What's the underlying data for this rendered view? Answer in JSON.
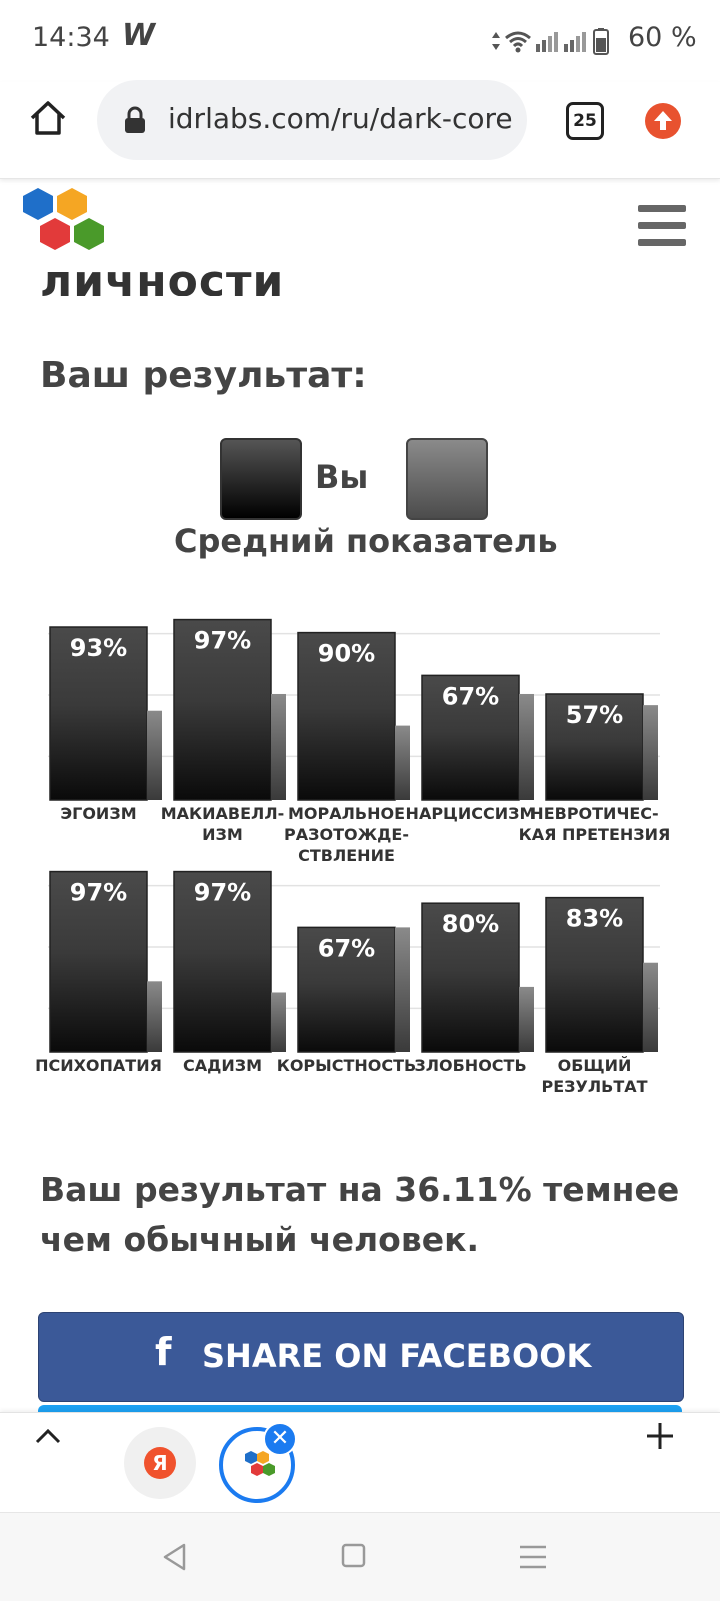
{
  "status_bar": {
    "time": "14:34",
    "app_icon": "W",
    "battery": "60 %"
  },
  "browser": {
    "url": "idrlabs.com/ru/dark-core",
    "tab_count": "25"
  },
  "page": {
    "heading_partial": "личности",
    "result_title": "Ваш результат:",
    "legend": {
      "you": "Вы",
      "average": "Средний показатель"
    },
    "summary": "Ваш результат на 36.11% темнее чем обычный человек.",
    "share_facebook": "SHARE ON FACEBOOK"
  },
  "bottom_bar": {
    "yandex_label": "Я"
  },
  "colors": {
    "facebook": "#3b5998",
    "twitter": "#1da1f2",
    "upload_accent": "#e8522f",
    "active_tab": "#1b7bf0"
  },
  "chart_data": [
    {
      "type": "bar",
      "categories": [
        [
          "ЭГОИЗМ"
        ],
        [
          "МАКИАВЕЛЛ-",
          "ИЗМ"
        ],
        [
          "МОРАЛЬНОЕ",
          "РАЗОТОЖДЕ-",
          "СТВЛЕНИЕ"
        ],
        [
          "НАРЦИССИЗМ"
        ],
        [
          "НЕВРОТИЧЕС-",
          "КАЯ ПРЕТЕНЗИЯ"
        ]
      ],
      "series": [
        {
          "name": "Вы",
          "values": [
            93,
            97,
            90,
            67,
            57
          ],
          "labels": [
            "93%",
            "97%",
            "90%",
            "67%",
            "57%"
          ]
        },
        {
          "name": "Средний показатель",
          "values": [
            48,
            57,
            40,
            57,
            51
          ]
        }
      ],
      "ylim": [
        0,
        100
      ],
      "grid": true
    },
    {
      "type": "bar",
      "categories": [
        [
          "ПСИХОПАТИЯ"
        ],
        [
          "САДИЗМ"
        ],
        [
          "КОРЫСТНОСТЬ"
        ],
        [
          "ЗЛОБНОСТЬ"
        ],
        [
          "ОБЩИЙ",
          "РЕЗУЛЬТАТ"
        ]
      ],
      "series": [
        {
          "name": "Вы",
          "values": [
            97,
            97,
            67,
            80,
            83
          ],
          "labels": [
            "97%",
            "97%",
            "67%",
            "80%",
            "83%"
          ]
        },
        {
          "name": "Средний показатель",
          "values": [
            38,
            32,
            67,
            35,
            48
          ]
        }
      ],
      "ylim": [
        0,
        100
      ],
      "grid": true
    }
  ]
}
